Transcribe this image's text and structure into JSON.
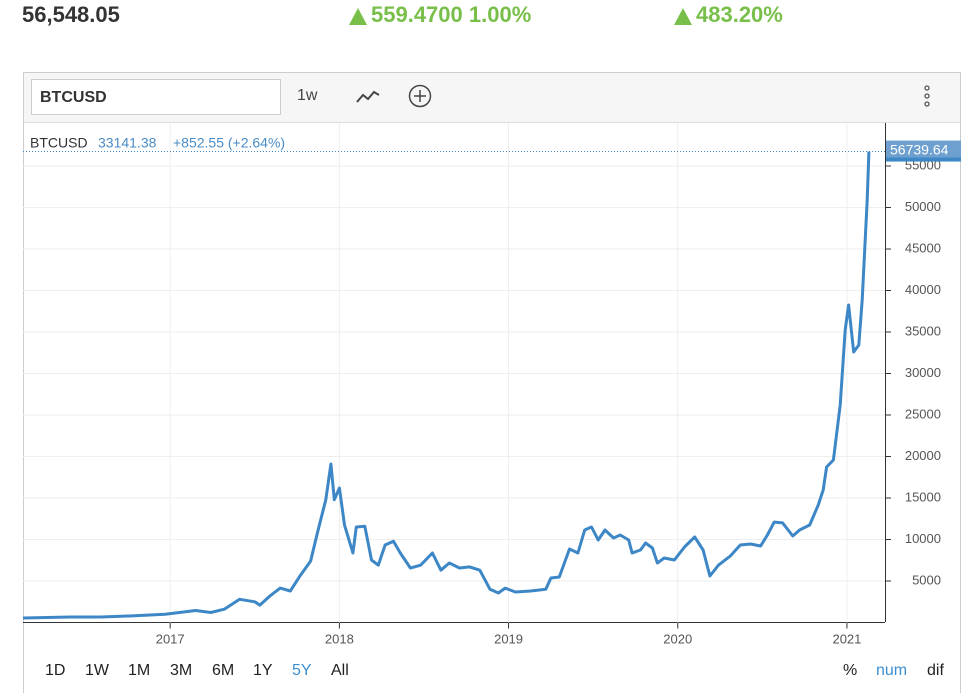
{
  "header": {
    "price": "56,548.05",
    "change": "559.4700 1.00%",
    "ytd_change": "483.20%"
  },
  "toolbar": {
    "symbol": "BTCUSD",
    "interval": "1w"
  },
  "legend": {
    "symbol": "BTCUSD",
    "value": "33141.38",
    "change": "+852.55 (+2.64%)"
  },
  "ranges": [
    "1D",
    "1W",
    "1M",
    "3M",
    "6M",
    "1Y",
    "5Y",
    "All"
  ],
  "active_range": "5Y",
  "modes": [
    "%",
    "num",
    "dif"
  ],
  "active_mode": "num",
  "chart_data": {
    "type": "line",
    "x": [
      2016.13,
      2016.41,
      2016.59,
      2016.76,
      2016.97,
      2017.15,
      2017.24,
      2017.32,
      2017.41,
      2017.5,
      2017.53,
      2017.59,
      2017.65,
      2017.71,
      2017.77,
      2017.83,
      2017.87,
      2017.92,
      2017.95,
      2017.97,
      2018.0,
      2018.03,
      2018.08,
      2018.1,
      2018.15,
      2018.19,
      2018.23,
      2018.27,
      2018.32,
      2018.36,
      2018.42,
      2018.48,
      2018.55,
      2018.6,
      2018.65,
      2018.71,
      2018.77,
      2018.83,
      2018.89,
      2018.94,
      2018.98,
      2019.04,
      2019.13,
      2019.22,
      2019.25,
      2019.3,
      2019.36,
      2019.41,
      2019.45,
      2019.49,
      2019.53,
      2019.57,
      2019.62,
      2019.66,
      2019.71,
      2019.73,
      2019.78,
      2019.81,
      2019.85,
      2019.88,
      2019.92,
      2019.98,
      2020.04,
      2020.1,
      2020.15,
      2020.19,
      2020.24,
      2020.31,
      2020.37,
      2020.43,
      2020.49,
      2020.53,
      2020.57,
      2020.62,
      2020.68,
      2020.72,
      2020.78,
      2020.83,
      2020.86,
      2020.88,
      2020.92,
      2020.96,
      2020.99,
      2021.01,
      2021.04,
      2021.07,
      2021.09,
      2021.12,
      2021.13
    ],
    "series": [
      {
        "name": "BTCUSD",
        "color": "#3d87c7",
        "values": [
          540,
          660,
          660,
          780,
          1000,
          1450,
          1200,
          1600,
          2800,
          2500,
          2100,
          3200,
          4150,
          3800,
          5700,
          7400,
          10800,
          14800,
          19100,
          14800,
          16200,
          11750,
          8370,
          11500,
          11600,
          7530,
          6900,
          9340,
          9800,
          8370,
          6570,
          6900,
          8370,
          6300,
          7170,
          6570,
          6700,
          6300,
          4000,
          3550,
          4150,
          3670,
          3800,
          4000,
          5360,
          5480,
          8860,
          8370,
          11150,
          11500,
          9940,
          11150,
          10180,
          10540,
          9940,
          8370,
          8740,
          9580,
          8980,
          7170,
          7770,
          7530,
          9100,
          10300,
          8740,
          5600,
          6900,
          8000,
          9340,
          9460,
          9220,
          10540,
          12100,
          12000,
          10420,
          11150,
          11750,
          14150,
          15960,
          18740,
          19580,
          26200,
          35240,
          38250,
          32590,
          33430,
          38850,
          50900,
          56739.64
        ]
      }
    ],
    "xlim": [
      2016.13,
      2021.225
    ],
    "xticks": [
      2017,
      2018,
      2019,
      2020,
      2021
    ],
    "ylim": [
      0,
      60000
    ],
    "yticks": [
      5000,
      10000,
      15000,
      20000,
      25000,
      30000,
      35000,
      40000,
      45000,
      50000,
      55000
    ],
    "grid": true
  }
}
